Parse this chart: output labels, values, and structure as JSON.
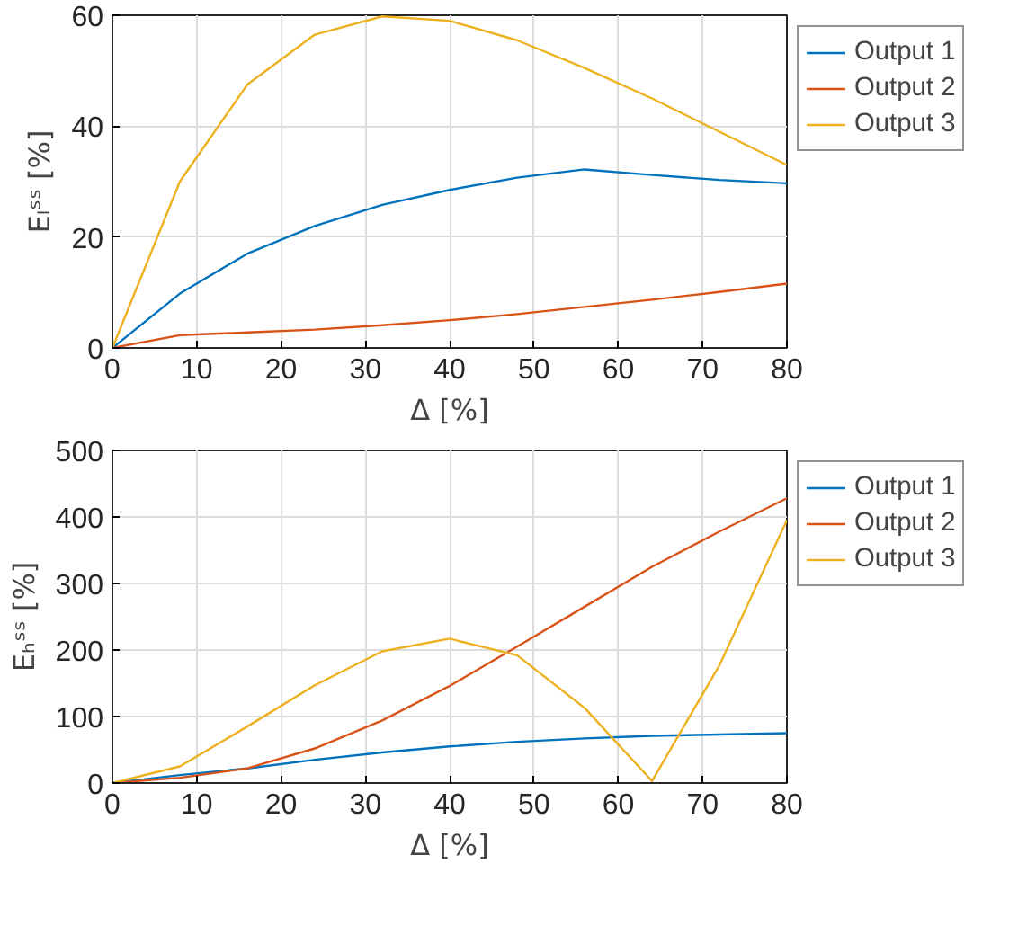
{
  "chart_data": [
    {
      "type": "line",
      "xlabel": "Δ [%]",
      "ylabel": "Eₗˢˢ [%]",
      "x": [
        0,
        8,
        16,
        24,
        32,
        40,
        48,
        56,
        64,
        72,
        80
      ],
      "xlim": [
        0,
        80
      ],
      "xticks": [
        0,
        10,
        20,
        30,
        40,
        50,
        60,
        70,
        80
      ],
      "ylim": [
        0,
        60
      ],
      "yticks": [
        0,
        20,
        40,
        60
      ],
      "grid": true,
      "legend": "right",
      "series": [
        {
          "name": "Output 1",
          "color": "#0072bd",
          "values": [
            0,
            9.8,
            17,
            22,
            25.8,
            28.5,
            30.7,
            32.2,
            31.2,
            30.3,
            29.7
          ]
        },
        {
          "name": "Output 2",
          "color": "#d95319",
          "values": [
            0,
            2.3,
            2.8,
            3.3,
            4.1,
            5.0,
            6.1,
            7.4,
            8.7,
            10.1,
            11.6
          ]
        },
        {
          "name": "Output 3",
          "color": "#edb120",
          "values": [
            0,
            30,
            47.5,
            56.5,
            59.8,
            59,
            55.5,
            50.5,
            45,
            39,
            33
          ]
        }
      ]
    },
    {
      "type": "line",
      "xlabel": "Δ [%]",
      "ylabel": "Eₕˢˢ [%]",
      "x": [
        0,
        8,
        16,
        24,
        32,
        40,
        48,
        56,
        64,
        72,
        80
      ],
      "xlim": [
        0,
        80
      ],
      "xticks": [
        0,
        10,
        20,
        30,
        40,
        50,
        60,
        70,
        80
      ],
      "ylim": [
        0,
        500
      ],
      "yticks": [
        0,
        100,
        200,
        300,
        400,
        500
      ],
      "grid": true,
      "legend": "right",
      "series": [
        {
          "name": "Output 1",
          "color": "#0072bd",
          "values": [
            0,
            12,
            22,
            35,
            46,
            55,
            62,
            67,
            71,
            73,
            75
          ]
        },
        {
          "name": "Output 2",
          "color": "#d95319",
          "values": [
            0,
            8,
            22,
            52,
            94,
            146,
            205,
            265,
            325,
            378,
            428
          ]
        },
        {
          "name": "Output 3",
          "color": "#edb120",
          "values": [
            0,
            25,
            85,
            147,
            198,
            217,
            192,
            113,
            3,
            177,
            395
          ]
        }
      ]
    }
  ]
}
